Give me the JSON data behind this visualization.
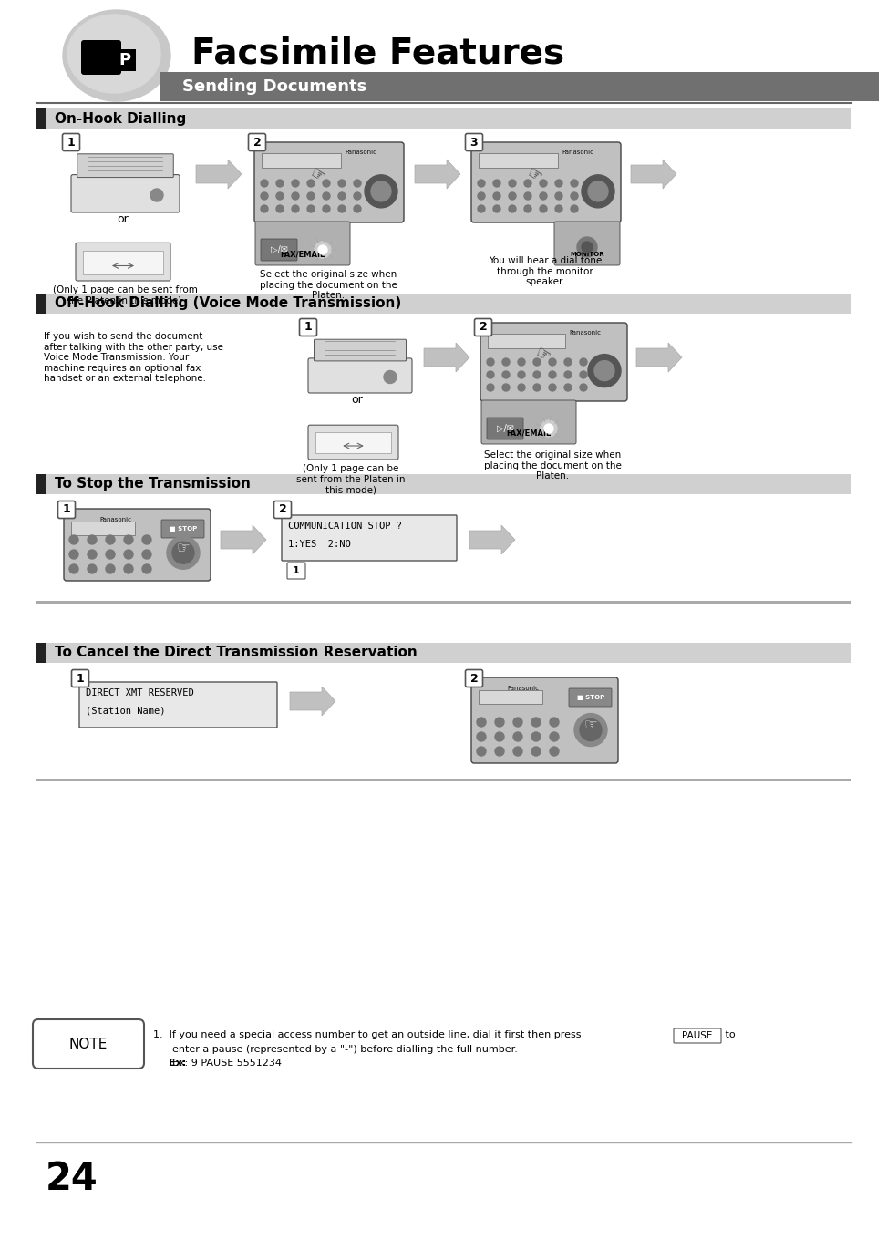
{
  "title": "Facsimile Features",
  "subtitle": "Sending Documents",
  "page_number": "24",
  "bg_color": "#ffffff",
  "sections": [
    {
      "title": "On-Hook Dialling",
      "steps": [
        {
          "num": "1",
          "caption": "(Only 1 page can be sent from\nthe Platen in this mode)"
        },
        {
          "num": "2",
          "caption": "Select the original size when\nplacing the document on the\nPlaten."
        },
        {
          "num": "3",
          "caption": "You will hear a dial tone\nthrough the monitor\nspeaker."
        }
      ]
    },
    {
      "title": "Off-Hook Dialling (Voice Mode Transmission)",
      "side_text": "If you wish to send the document\nafter talking with the other party, use\nVoice Mode Transmission. Your\nmachine requires an optional fax\nhandset or an external telephone.",
      "steps": [
        {
          "num": "1",
          "caption": "(Only 1 page can be\nsent from the Platen in\nthis mode)"
        },
        {
          "num": "2",
          "caption": "Select the original size when\nplacing the document on the\nPlaten."
        }
      ]
    },
    {
      "title": "To Stop the Transmission",
      "steps": [
        {
          "num": "1",
          "caption": ""
        },
        {
          "num": "2",
          "caption": "",
          "lcd_text": "COMMUNICATION STOP ?\n1:YES  2:NO",
          "lcd_sub": "1"
        }
      ]
    },
    {
      "title": "To Cancel the Direct Transmission Reservation",
      "steps": [
        {
          "num": "1",
          "caption": "",
          "lcd_text": "DIRECT XMT RESERVED\n(Station Name)"
        },
        {
          "num": "2",
          "caption": ""
        }
      ]
    }
  ],
  "note_text": "1.  If you need a special access number to get an outside line, dial it first then press  PAUSE  to\n      enter a pause (represented by a \"-\") before dialling the full number.\n      Ex: 9 PAUSE 5551234"
}
